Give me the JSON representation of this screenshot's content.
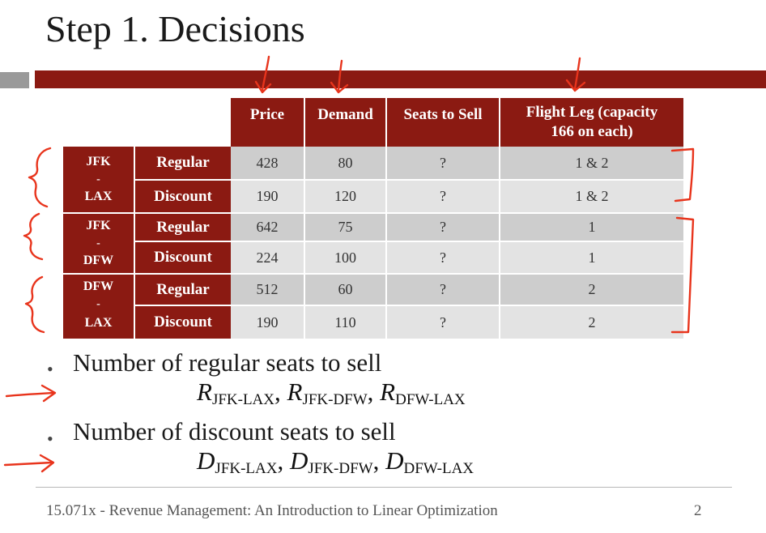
{
  "slide": {
    "title": "Step 1. Decisions",
    "footer": "15.071x - Revenue Management: An Introduction to Linear Optimization",
    "page_number": "2"
  },
  "table": {
    "headers": {
      "price": "Price",
      "demand": "Demand",
      "seats": "Seats to Sell",
      "leg_line1": "Flight Leg (capacity",
      "leg_line2": "166 on each)"
    },
    "routes": [
      {
        "from": "JFK",
        "dash": "-",
        "to": "LAX",
        "fares": [
          {
            "type": "Regular",
            "price": "428",
            "demand": "80",
            "seats": "?",
            "leg": "1 & 2"
          },
          {
            "type": "Discount",
            "price": "190",
            "demand": "120",
            "seats": "?",
            "leg": "1 & 2"
          }
        ]
      },
      {
        "from": "JFK",
        "dash": "-",
        "to": "DFW",
        "fares": [
          {
            "type": "Regular",
            "price": "642",
            "demand": "75",
            "seats": "?",
            "leg": "1"
          },
          {
            "type": "Discount",
            "price": "224",
            "demand": "100",
            "seats": "?",
            "leg": "1"
          }
        ]
      },
      {
        "from": "DFW",
        "dash": "-",
        "to": "LAX",
        "fares": [
          {
            "type": "Regular",
            "price": "512",
            "demand": "60",
            "seats": "?",
            "leg": "2"
          },
          {
            "type": "Discount",
            "price": "190",
            "demand": "110",
            "seats": "?",
            "leg": "2"
          }
        ]
      }
    ]
  },
  "bullets": [
    {
      "marker": "•",
      "text": "Number of regular seats to sell",
      "math": [
        {
          "var": "R",
          "sub": "JFK-LAX"
        },
        {
          "var": "R",
          "sub": "JFK-DFW"
        },
        {
          "var": "R",
          "sub": "DFW-LAX"
        }
      ],
      "comma": ","
    },
    {
      "marker": "•",
      "text": "Number of discount seats to sell",
      "math": [
        {
          "var": "D",
          "sub": "JFK-LAX"
        },
        {
          "var": "D",
          "sub": "JFK-DFW"
        },
        {
          "var": "D",
          "sub": "DFW-LAX"
        }
      ],
      "comma": ","
    }
  ],
  "colors": {
    "accent": "#8b1a12",
    "annotation": "#e8341c",
    "cell_dark": "#cdcdcd",
    "cell_light": "#e3e3e3"
  }
}
